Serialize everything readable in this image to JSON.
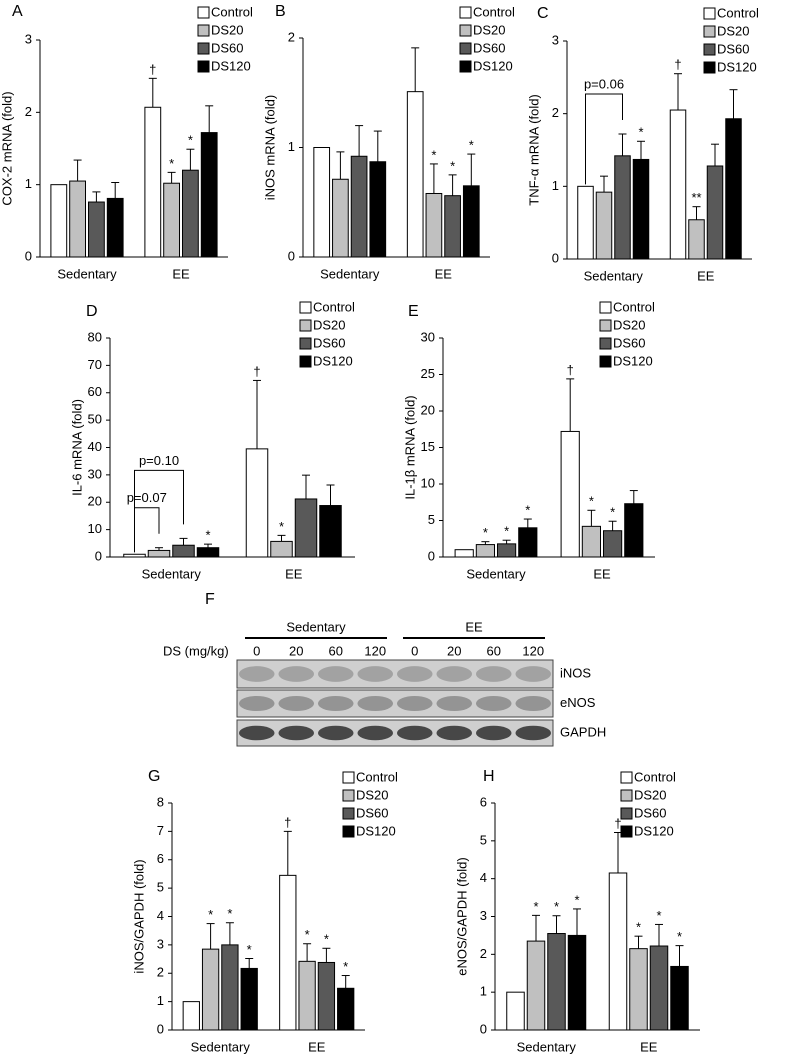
{
  "chart_data": [
    {
      "type": "bar",
      "panel": "A",
      "ylabel": "COX-2 mRNA (fold)",
      "categories": [
        "Sedentary",
        "EE"
      ],
      "ylim": [
        0,
        3
      ],
      "yticks": [
        0,
        1,
        2,
        3
      ],
      "series": [
        {
          "name": "Control",
          "color": "#ffffff",
          "values": [
            1.0,
            2.07
          ],
          "errors": [
            null,
            0.4
          ],
          "marks": [
            null,
            "†"
          ]
        },
        {
          "name": "DS20",
          "color": "#c0c0c0",
          "values": [
            1.05,
            1.02
          ],
          "errors": [
            0.29,
            0.15
          ],
          "marks": [
            null,
            "*"
          ]
        },
        {
          "name": "DS60",
          "color": "#595959",
          "values": [
            0.76,
            1.2
          ],
          "errors": [
            0.14,
            0.29
          ],
          "marks": [
            null,
            "*"
          ]
        },
        {
          "name": "DS120",
          "color": "#000000",
          "values": [
            0.81,
            1.72
          ],
          "errors": [
            0.22,
            0.37
          ],
          "marks": [
            null,
            null
          ]
        }
      ]
    },
    {
      "type": "bar",
      "panel": "B",
      "ylabel": "iNOS mRNA (fold)",
      "categories": [
        "Sedentary",
        "EE"
      ],
      "ylim": [
        0,
        2
      ],
      "yticks": [
        0,
        1,
        2
      ],
      "series": [
        {
          "name": "Control",
          "color": "#ffffff",
          "values": [
            1.0,
            1.51
          ],
          "errors": [
            null,
            0.4
          ],
          "marks": [
            null,
            null
          ]
        },
        {
          "name": "DS20",
          "color": "#c0c0c0",
          "values": [
            0.71,
            0.58
          ],
          "errors": [
            0.25,
            0.27
          ],
          "marks": [
            null,
            "*"
          ]
        },
        {
          "name": "DS60",
          "color": "#595959",
          "values": [
            0.92,
            0.56
          ],
          "errors": [
            0.28,
            0.19
          ],
          "marks": [
            null,
            "*"
          ]
        },
        {
          "name": "DS120",
          "color": "#000000",
          "values": [
            0.87,
            0.65
          ],
          "errors": [
            0.28,
            0.29
          ],
          "marks": [
            null,
            "*"
          ]
        }
      ]
    },
    {
      "type": "bar",
      "panel": "C",
      "ylabel": "TNF-α mRNA (fold)",
      "categories": [
        "Sedentary",
        "EE"
      ],
      "ylim": [
        0,
        3
      ],
      "yticks": [
        0,
        1,
        2,
        3
      ],
      "series": [
        {
          "name": "Control",
          "color": "#ffffff",
          "values": [
            1.0,
            2.05
          ],
          "errors": [
            null,
            0.5
          ],
          "marks": [
            null,
            "†"
          ]
        },
        {
          "name": "DS20",
          "color": "#c0c0c0",
          "values": [
            0.92,
            0.54
          ],
          "errors": [
            0.22,
            0.18
          ],
          "marks": [
            null,
            "**"
          ]
        },
        {
          "name": "DS60",
          "color": "#595959",
          "values": [
            1.42,
            1.28
          ],
          "errors": [
            0.3,
            0.3
          ],
          "marks": [
            null,
            null
          ]
        },
        {
          "name": "DS120",
          "color": "#000000",
          "values": [
            1.37,
            1.93
          ],
          "errors": [
            0.25,
            0.4
          ],
          "marks": [
            "*",
            null
          ]
        }
      ],
      "annotations": [
        {
          "label": "p=0.06",
          "between": [
            "Control",
            "DS60"
          ]
        }
      ]
    },
    {
      "type": "bar",
      "panel": "D",
      "ylabel": "IL-6 mRNA (fold)",
      "categories": [
        "Sedentary",
        "EE"
      ],
      "ylim": [
        0,
        80
      ],
      "yticks": [
        0,
        10,
        20,
        30,
        40,
        50,
        60,
        70,
        80
      ],
      "series": [
        {
          "name": "Control",
          "color": "#ffffff",
          "values": [
            1.0,
            39.5
          ],
          "errors": [
            null,
            25
          ],
          "marks": [
            null,
            "†"
          ]
        },
        {
          "name": "DS20",
          "color": "#c0c0c0",
          "values": [
            2.4,
            5.7
          ],
          "errors": [
            1.0,
            2.2
          ],
          "marks": [
            null,
            "*"
          ]
        },
        {
          "name": "DS60",
          "color": "#595959",
          "values": [
            4.3,
            21.2
          ],
          "errors": [
            2.5,
            8.7
          ],
          "marks": [
            null,
            null
          ]
        },
        {
          "name": "DS120",
          "color": "#000000",
          "values": [
            3.4,
            18.8
          ],
          "errors": [
            1.3,
            7.5
          ],
          "marks": [
            "*",
            null
          ]
        }
      ],
      "annotations": [
        {
          "label": "p=0.07",
          "between": [
            "Control",
            "DS20"
          ]
        },
        {
          "label": "p=0.10",
          "between": [
            "Control",
            "DS60"
          ]
        }
      ]
    },
    {
      "type": "bar",
      "panel": "E",
      "ylabel": "IL-1β mRNA (fold)",
      "categories": [
        "Sedentary",
        "EE"
      ],
      "ylim": [
        0,
        30
      ],
      "yticks": [
        0,
        5,
        10,
        15,
        20,
        25,
        30
      ],
      "series": [
        {
          "name": "Control",
          "color": "#ffffff",
          "values": [
            1.0,
            17.2
          ],
          "errors": [
            null,
            7.2
          ],
          "marks": [
            null,
            "†"
          ]
        },
        {
          "name": "DS20",
          "color": "#c0c0c0",
          "values": [
            1.7,
            4.2
          ],
          "errors": [
            0.4,
            2.2
          ],
          "marks": [
            "*",
            "*"
          ]
        },
        {
          "name": "DS60",
          "color": "#595959",
          "values": [
            1.8,
            3.6
          ],
          "errors": [
            0.5,
            1.3
          ],
          "marks": [
            "*",
            "*"
          ]
        },
        {
          "name": "DS120",
          "color": "#000000",
          "values": [
            4.0,
            7.3
          ],
          "errors": [
            1.2,
            1.8
          ],
          "marks": [
            "*",
            null
          ]
        }
      ]
    },
    {
      "type": "bar",
      "panel": "G",
      "ylabel": "iNOS/GAPDH (fold)",
      "categories": [
        "Sedentary",
        "EE"
      ],
      "ylim": [
        0,
        8
      ],
      "yticks": [
        0,
        1,
        2,
        3,
        4,
        5,
        6,
        7,
        8
      ],
      "series": [
        {
          "name": "Control",
          "color": "#ffffff",
          "values": [
            1.0,
            5.45
          ],
          "errors": [
            null,
            1.55
          ],
          "marks": [
            null,
            "†"
          ]
        },
        {
          "name": "DS20",
          "color": "#c0c0c0",
          "values": [
            2.85,
            2.42
          ],
          "errors": [
            0.9,
            0.62
          ],
          "marks": [
            "*",
            "*"
          ]
        },
        {
          "name": "DS60",
          "color": "#595959",
          "values": [
            3.0,
            2.38
          ],
          "errors": [
            0.78,
            0.5
          ],
          "marks": [
            "*",
            "*"
          ]
        },
        {
          "name": "DS120",
          "color": "#000000",
          "values": [
            2.17,
            1.47
          ],
          "errors": [
            0.35,
            0.45
          ],
          "marks": [
            "*",
            "*"
          ]
        }
      ]
    },
    {
      "type": "bar",
      "panel": "H",
      "ylabel": "eNOS/GAPDH (fold)",
      "categories": [
        "Sedentary",
        "EE"
      ],
      "ylim": [
        0,
        6
      ],
      "yticks": [
        0,
        1,
        2,
        3,
        4,
        5,
        6
      ],
      "series": [
        {
          "name": "Control",
          "color": "#ffffff",
          "values": [
            1.0,
            4.15
          ],
          "errors": [
            null,
            1.07
          ],
          "marks": [
            null,
            "†"
          ]
        },
        {
          "name": "DS20",
          "color": "#c0c0c0",
          "values": [
            2.35,
            2.15
          ],
          "errors": [
            0.68,
            0.33
          ],
          "marks": [
            "*",
            "*"
          ]
        },
        {
          "name": "DS60",
          "color": "#595959",
          "values": [
            2.55,
            2.22
          ],
          "errors": [
            0.47,
            0.57
          ],
          "marks": [
            "*",
            "*"
          ]
        },
        {
          "name": "DS120",
          "color": "#000000",
          "values": [
            2.5,
            1.68
          ],
          "errors": [
            0.7,
            0.55
          ],
          "marks": [
            "*",
            "*"
          ]
        }
      ]
    }
  ],
  "blot": {
    "panel": "F",
    "dose_label": "DS (mg/kg)",
    "groups": [
      "Sedentary",
      "EE"
    ],
    "doses": [
      "0",
      "20",
      "60",
      "120",
      "0",
      "20",
      "60",
      "120"
    ],
    "rows": [
      "iNOS",
      "eNOS",
      "GAPDH"
    ]
  }
}
